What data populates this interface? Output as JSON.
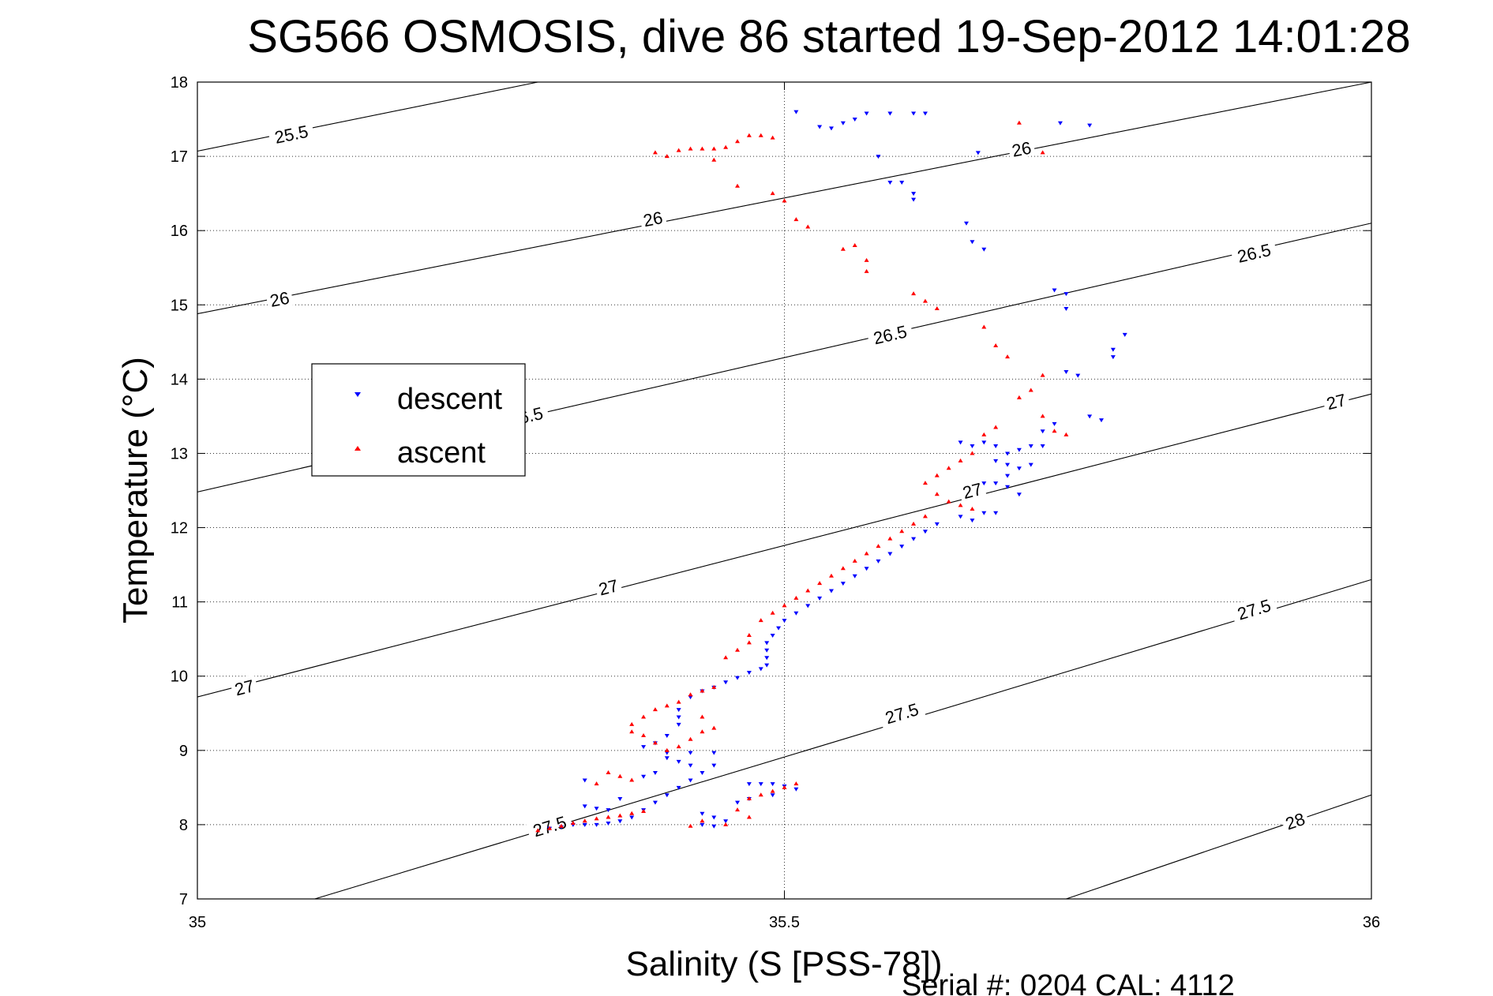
{
  "chart_data": {
    "type": "scatter",
    "title": "SG566 OSMOSIS, dive 86 started 19-Sep-2012 14:01:28",
    "xlabel": "Salinity (S [PSS-78])",
    "ylabel": "Temperature (°C)",
    "xlim": [
      35,
      36
    ],
    "ylim": [
      7,
      18
    ],
    "xticks": [
      35,
      35.5,
      36
    ],
    "xtick_labels": [
      "35",
      "35.5",
      "36"
    ],
    "yticks": [
      7,
      8,
      9,
      10,
      11,
      12,
      13,
      14,
      15,
      16,
      17,
      18
    ],
    "ytick_labels": [
      "7",
      "8",
      "9",
      "10",
      "11",
      "12",
      "13",
      "14",
      "15",
      "16",
      "17",
      "18"
    ],
    "grid": true,
    "legend_position": "middle-left",
    "footer": "Serial #: 0204  CAL: 4112",
    "isopycnals": [
      {
        "label": "25.5",
        "line": [
          [
            35.0,
            17.07
          ],
          [
            35.29,
            18.0
          ]
        ],
        "label_points": [
          [
            35.08,
            17.3
          ]
        ]
      },
      {
        "label": "26",
        "line": [
          [
            35.0,
            14.88
          ],
          [
            36.0,
            18.0
          ]
        ],
        "label_points": [
          [
            35.07,
            15.08
          ],
          [
            35.388,
            16.16
          ],
          [
            35.702,
            17.1
          ]
        ]
      },
      {
        "label": "26.5",
        "line": [
          [
            35.0,
            12.48
          ],
          [
            36.0,
            16.1
          ]
        ],
        "label_points": [
          [
            35.28,
            13.5
          ],
          [
            35.59,
            14.6
          ],
          [
            35.9,
            15.7
          ]
        ]
      },
      {
        "label": "27",
        "line": [
          [
            35.0,
            9.72
          ],
          [
            36.0,
            13.8
          ]
        ],
        "label_points": [
          [
            35.04,
            9.85
          ],
          [
            35.35,
            11.2
          ],
          [
            35.66,
            12.5
          ],
          [
            35.97,
            13.7
          ]
        ]
      },
      {
        "label": "27.5",
        "line": [
          [
            35.1,
            7.0
          ],
          [
            36.0,
            11.3
          ]
        ],
        "label_points": [
          [
            35.3,
            7.98
          ],
          [
            35.6,
            9.5
          ],
          [
            35.9,
            10.9
          ]
        ]
      },
      {
        "label": "28",
        "line": [
          [
            35.74,
            7.0
          ],
          [
            36.0,
            8.4
          ]
        ],
        "label_points": [
          [
            35.935,
            8.05
          ]
        ]
      }
    ],
    "series": [
      {
        "name": "descent",
        "color": "#0000ff",
        "marker": "triangle-down",
        "points": [
          [
            35.51,
            17.6
          ],
          [
            35.53,
            17.4
          ],
          [
            35.54,
            17.38
          ],
          [
            35.55,
            17.45
          ],
          [
            35.56,
            17.5
          ],
          [
            35.57,
            17.58
          ],
          [
            35.59,
            17.58
          ],
          [
            35.61,
            17.58
          ],
          [
            35.62,
            17.58
          ],
          [
            35.58,
            17.0
          ],
          [
            35.59,
            16.65
          ],
          [
            35.6,
            16.65
          ],
          [
            35.61,
            16.5
          ],
          [
            35.61,
            16.42
          ],
          [
            35.655,
            16.1
          ],
          [
            35.66,
            15.85
          ],
          [
            35.67,
            15.75
          ],
          [
            35.665,
            17.05
          ],
          [
            35.735,
            17.45
          ],
          [
            35.76,
            17.42
          ],
          [
            35.73,
            15.2
          ],
          [
            35.74,
            15.15
          ],
          [
            35.74,
            14.95
          ],
          [
            35.79,
            14.6
          ],
          [
            35.78,
            14.4
          ],
          [
            35.78,
            14.3
          ],
          [
            35.65,
            13.15
          ],
          [
            35.66,
            13.1
          ],
          [
            35.67,
            13.15
          ],
          [
            35.68,
            13.1
          ],
          [
            35.69,
            13.0
          ],
          [
            35.7,
            13.05
          ],
          [
            35.71,
            13.1
          ],
          [
            35.72,
            13.1
          ],
          [
            35.74,
            14.1
          ],
          [
            35.75,
            14.05
          ],
          [
            35.76,
            13.5
          ],
          [
            35.77,
            13.45
          ],
          [
            35.73,
            13.4
          ],
          [
            35.72,
            13.3
          ],
          [
            35.68,
            12.9
          ],
          [
            35.69,
            12.85
          ],
          [
            35.7,
            12.8
          ],
          [
            35.71,
            12.85
          ],
          [
            35.69,
            12.7
          ],
          [
            35.68,
            12.6
          ],
          [
            35.69,
            12.55
          ],
          [
            35.7,
            12.45
          ],
          [
            35.67,
            12.6
          ],
          [
            35.68,
            12.2
          ],
          [
            35.67,
            12.2
          ],
          [
            35.66,
            12.1
          ],
          [
            35.65,
            12.15
          ],
          [
            35.63,
            12.05
          ],
          [
            35.62,
            11.95
          ],
          [
            35.61,
            11.85
          ],
          [
            35.6,
            11.75
          ],
          [
            35.59,
            11.65
          ],
          [
            35.58,
            11.55
          ],
          [
            35.57,
            11.45
          ],
          [
            35.56,
            11.35
          ],
          [
            35.55,
            11.25
          ],
          [
            35.54,
            11.15
          ],
          [
            35.53,
            11.05
          ],
          [
            35.52,
            10.95
          ],
          [
            35.51,
            10.85
          ],
          [
            35.5,
            10.75
          ],
          [
            35.495,
            10.65
          ],
          [
            35.49,
            10.55
          ],
          [
            35.485,
            10.45
          ],
          [
            35.485,
            10.35
          ],
          [
            35.485,
            10.25
          ],
          [
            35.485,
            10.15
          ],
          [
            35.48,
            10.1
          ],
          [
            35.47,
            10.05
          ],
          [
            35.46,
            9.98
          ],
          [
            35.45,
            9.92
          ],
          [
            35.44,
            9.85
          ],
          [
            35.43,
            9.8
          ],
          [
            35.42,
            9.72
          ],
          [
            35.41,
            9.55
          ],
          [
            35.41,
            9.45
          ],
          [
            35.41,
            9.35
          ],
          [
            35.4,
            9.2
          ],
          [
            35.39,
            9.1
          ],
          [
            35.38,
            9.05
          ],
          [
            35.4,
            8.97
          ],
          [
            35.42,
            8.97
          ],
          [
            35.44,
            8.97
          ],
          [
            35.4,
            8.9
          ],
          [
            35.41,
            8.85
          ],
          [
            35.42,
            8.8
          ],
          [
            35.39,
            8.7
          ],
          [
            35.38,
            8.65
          ],
          [
            35.47,
            8.55
          ],
          [
            35.48,
            8.55
          ],
          [
            35.49,
            8.55
          ],
          [
            35.5,
            8.52
          ],
          [
            35.51,
            8.48
          ],
          [
            35.49,
            8.4
          ],
          [
            35.47,
            8.35
          ],
          [
            35.46,
            8.3
          ],
          [
            35.43,
            8.15
          ],
          [
            35.44,
            8.1
          ],
          [
            35.45,
            8.05
          ],
          [
            35.43,
            8.0
          ],
          [
            35.44,
            7.98
          ],
          [
            35.33,
            8.6
          ],
          [
            35.33,
            8.25
          ],
          [
            35.34,
            8.22
          ],
          [
            35.35,
            8.2
          ],
          [
            35.36,
            8.35
          ],
          [
            35.33,
            8.0
          ],
          [
            35.34,
            8.0
          ],
          [
            35.35,
            8.02
          ],
          [
            35.3,
            7.95
          ],
          [
            35.31,
            7.97
          ],
          [
            35.32,
            8.0
          ],
          [
            35.36,
            8.05
          ],
          [
            35.37,
            8.1
          ],
          [
            35.38,
            8.2
          ],
          [
            35.39,
            8.3
          ],
          [
            35.4,
            8.4
          ],
          [
            35.41,
            8.5
          ],
          [
            35.42,
            8.6
          ],
          [
            35.43,
            8.7
          ],
          [
            35.44,
            8.8
          ]
        ]
      },
      {
        "name": "ascent",
        "color": "#ff0000",
        "marker": "triangle-up",
        "points": [
          [
            35.39,
            17.05
          ],
          [
            35.4,
            17.0
          ],
          [
            35.41,
            17.08
          ],
          [
            35.42,
            17.1
          ],
          [
            35.43,
            17.1
          ],
          [
            35.44,
            17.1
          ],
          [
            35.45,
            17.12
          ],
          [
            35.46,
            17.2
          ],
          [
            35.47,
            17.28
          ],
          [
            35.48,
            17.28
          ],
          [
            35.49,
            17.25
          ],
          [
            35.44,
            16.95
          ],
          [
            35.46,
            16.6
          ],
          [
            35.49,
            16.5
          ],
          [
            35.5,
            16.4
          ],
          [
            35.51,
            16.15
          ],
          [
            35.52,
            16.05
          ],
          [
            35.55,
            15.75
          ],
          [
            35.56,
            15.8
          ],
          [
            35.57,
            15.6
          ],
          [
            35.57,
            15.45
          ],
          [
            35.61,
            15.15
          ],
          [
            35.62,
            15.05
          ],
          [
            35.63,
            14.95
          ],
          [
            35.67,
            14.7
          ],
          [
            35.68,
            14.45
          ],
          [
            35.69,
            14.3
          ],
          [
            35.72,
            14.05
          ],
          [
            35.71,
            13.85
          ],
          [
            35.7,
            13.75
          ],
          [
            35.72,
            13.5
          ],
          [
            35.73,
            13.3
          ],
          [
            35.74,
            13.25
          ],
          [
            35.72,
            17.05
          ],
          [
            35.7,
            17.45
          ],
          [
            35.68,
            13.35
          ],
          [
            35.67,
            13.25
          ],
          [
            35.66,
            13.0
          ],
          [
            35.65,
            12.9
          ],
          [
            35.64,
            12.8
          ],
          [
            35.63,
            12.7
          ],
          [
            35.62,
            12.6
          ],
          [
            35.63,
            12.45
          ],
          [
            35.64,
            12.35
          ],
          [
            35.65,
            12.3
          ],
          [
            35.66,
            12.25
          ],
          [
            35.62,
            12.15
          ],
          [
            35.61,
            12.05
          ],
          [
            35.6,
            11.95
          ],
          [
            35.59,
            11.85
          ],
          [
            35.58,
            11.75
          ],
          [
            35.57,
            11.65
          ],
          [
            35.56,
            11.55
          ],
          [
            35.55,
            11.45
          ],
          [
            35.54,
            11.35
          ],
          [
            35.53,
            11.25
          ],
          [
            35.52,
            11.15
          ],
          [
            35.51,
            11.05
          ],
          [
            35.5,
            10.95
          ],
          [
            35.49,
            10.85
          ],
          [
            35.48,
            10.75
          ],
          [
            35.47,
            10.55
          ],
          [
            35.47,
            10.45
          ],
          [
            35.46,
            10.35
          ],
          [
            35.45,
            10.25
          ],
          [
            35.44,
            9.85
          ],
          [
            35.43,
            9.8
          ],
          [
            35.42,
            9.75
          ],
          [
            35.41,
            9.65
          ],
          [
            35.4,
            9.6
          ],
          [
            35.39,
            9.55
          ],
          [
            35.38,
            9.45
          ],
          [
            35.37,
            9.35
          ],
          [
            35.37,
            9.25
          ],
          [
            35.38,
            9.2
          ],
          [
            35.39,
            9.1
          ],
          [
            35.4,
            9.0
          ],
          [
            35.41,
            9.05
          ],
          [
            35.42,
            9.15
          ],
          [
            35.43,
            9.25
          ],
          [
            35.44,
            9.3
          ],
          [
            35.43,
            9.45
          ],
          [
            35.37,
            8.6
          ],
          [
            35.36,
            8.65
          ],
          [
            35.35,
            8.7
          ],
          [
            35.34,
            8.55
          ],
          [
            35.47,
            8.35
          ],
          [
            35.48,
            8.4
          ],
          [
            35.49,
            8.45
          ],
          [
            35.5,
            8.5
          ],
          [
            35.51,
            8.55
          ],
          [
            35.46,
            8.2
          ],
          [
            35.47,
            8.1
          ],
          [
            35.45,
            8.0
          ],
          [
            35.43,
            8.05
          ],
          [
            35.42,
            7.98
          ],
          [
            35.29,
            7.92
          ],
          [
            35.3,
            7.95
          ],
          [
            35.31,
            7.98
          ],
          [
            35.32,
            8.02
          ],
          [
            35.33,
            8.05
          ],
          [
            35.34,
            8.08
          ],
          [
            35.35,
            8.1
          ],
          [
            35.36,
            8.12
          ],
          [
            35.37,
            8.15
          ],
          [
            35.38,
            8.18
          ]
        ]
      }
    ]
  }
}
